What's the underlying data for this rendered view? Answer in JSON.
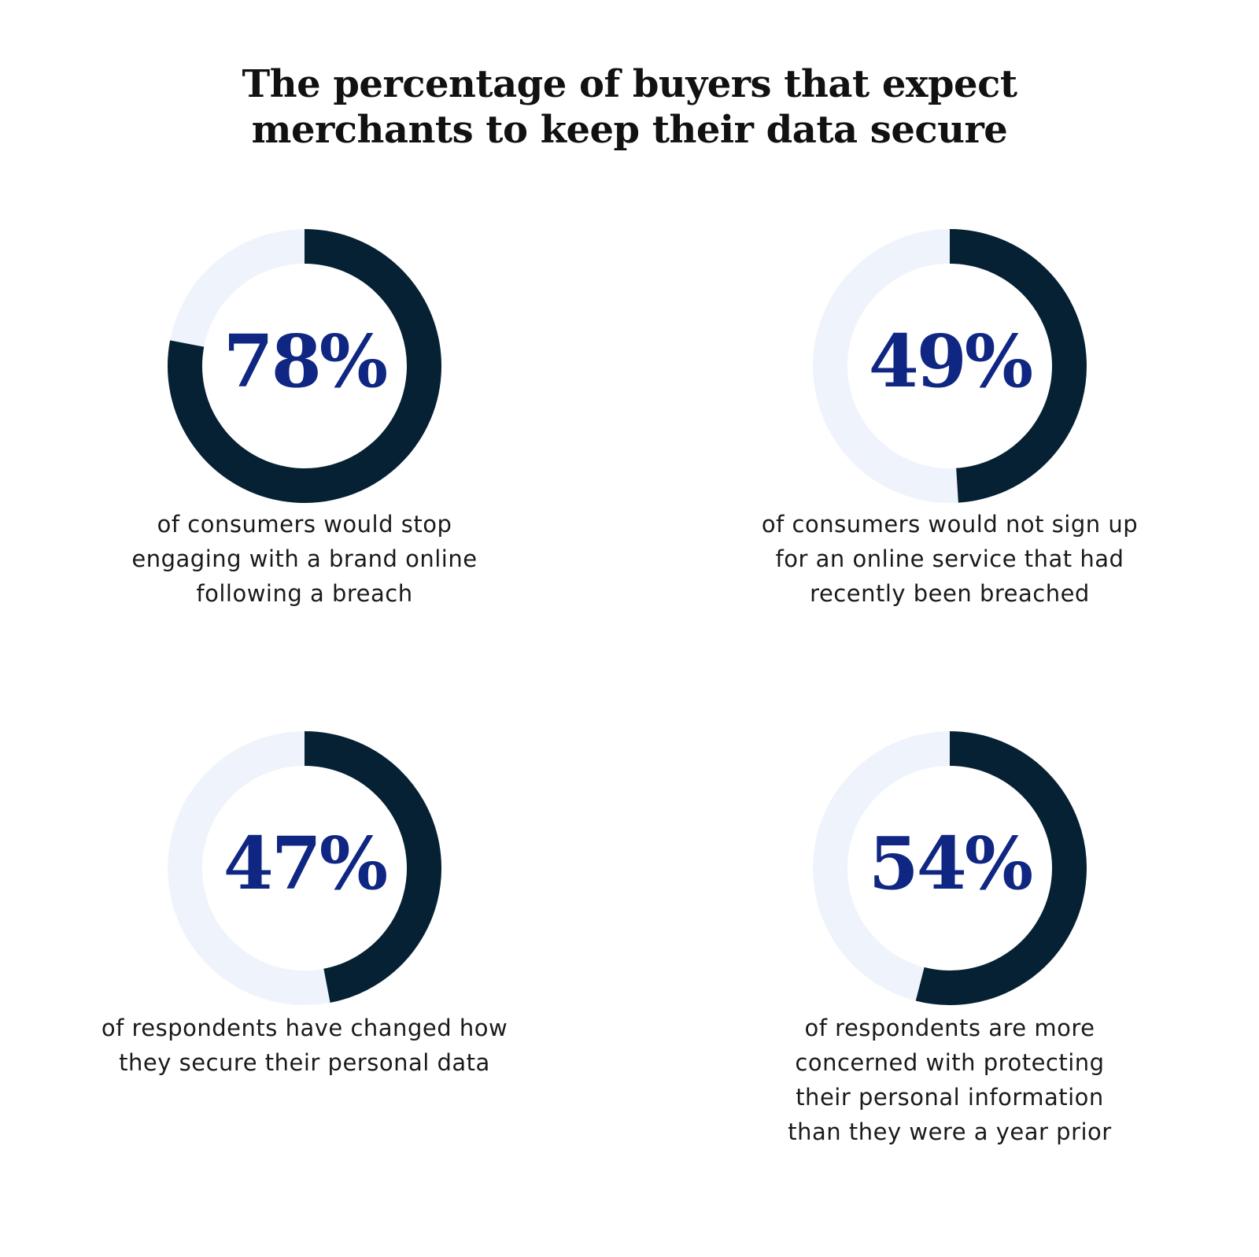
{
  "title_lines": [
    "The percentage of buyers that expect",
    "merchants to keep their data secure"
  ],
  "colors": {
    "ring_fill": "#062133",
    "ring_track": "#eff4fc",
    "percent_text": "#0f2683"
  },
  "chart_data": {
    "type": "pie",
    "title": "The percentage of buyers that expect merchants to keep their data secure",
    "items": [
      {
        "value": 78,
        "label": "78%",
        "description_lines": [
          "of consumers would stop",
          "engaging with a brand online",
          "following a breach"
        ]
      },
      {
        "value": 49,
        "label": "49%",
        "description_lines": [
          "of consumers would not sign up",
          "for an online service that had",
          "recently been breached"
        ]
      },
      {
        "value": 47,
        "label": "47%",
        "description_lines": [
          "of respondents have changed how",
          "they secure their personal data"
        ]
      },
      {
        "value": 54,
        "label": "54%",
        "description_lines": [
          "of respondents are more",
          "concerned with protecting",
          "their personal information",
          "than they were a year prior"
        ]
      }
    ]
  }
}
